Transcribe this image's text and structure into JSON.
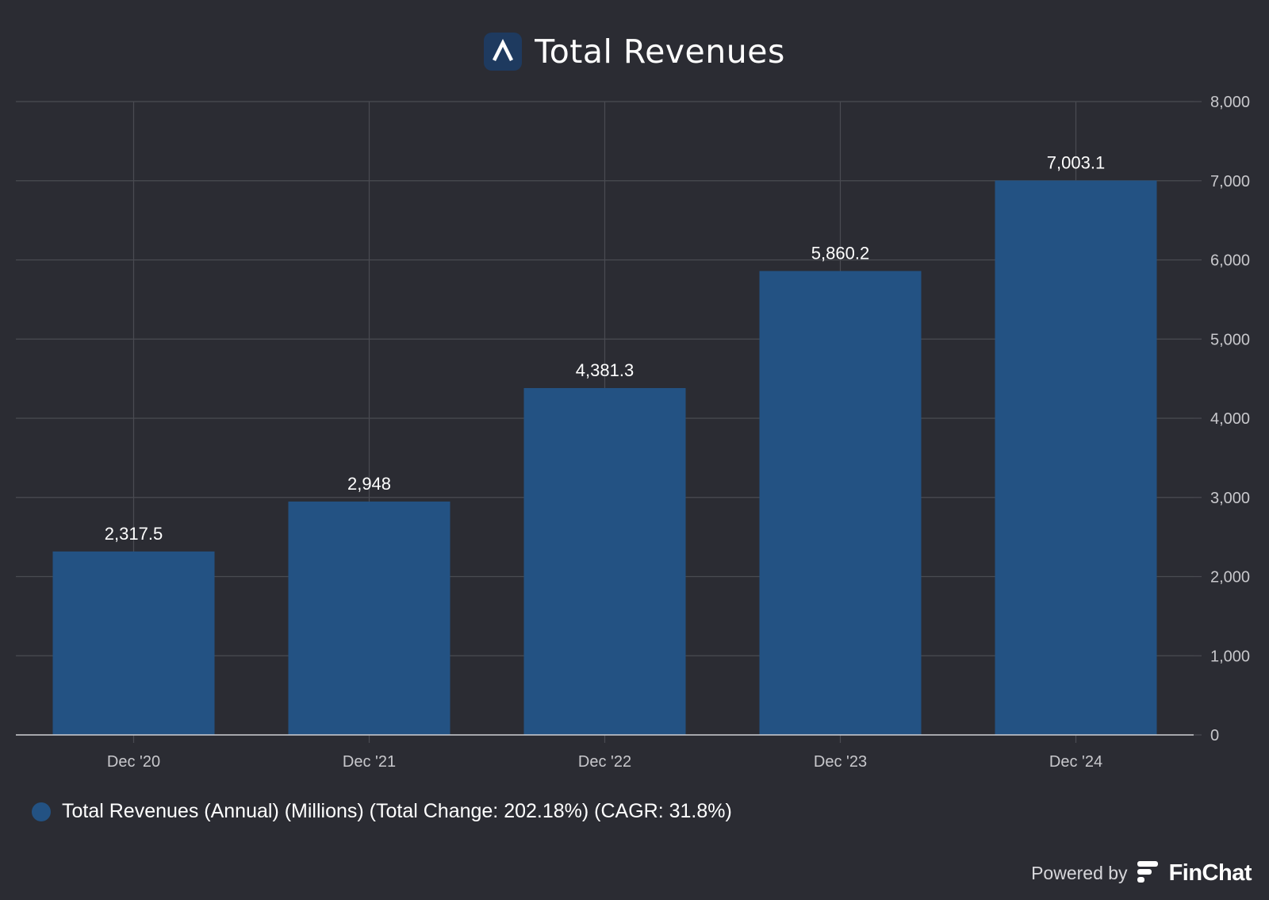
{
  "header": {
    "title": "Total Revenues",
    "logo_icon": "letter-a-logo-icon"
  },
  "chart_data": {
    "type": "bar",
    "title": "Total Revenues",
    "categories": [
      "Dec '20",
      "Dec '21",
      "Dec '22",
      "Dec '23",
      "Dec '24"
    ],
    "series": [
      {
        "name": "Total Revenues (Annual) (Millions) (Total Change: 202.18%) (CAGR: 31.8%)",
        "values": [
          2317.5,
          2948,
          4381.3,
          5860.2,
          7003.1
        ],
        "labels": [
          "2,317.5",
          "2,948",
          "4,381.3",
          "5,860.2",
          "7,003.1"
        ],
        "color": "#235283"
      }
    ],
    "ylim": [
      0,
      8000
    ],
    "yticks": [
      0,
      1000,
      2000,
      3000,
      4000,
      5000,
      6000,
      7000,
      8000
    ],
    "ytick_labels": [
      "0",
      "1,000",
      "2,000",
      "3,000",
      "4,000",
      "5,000",
      "6,000",
      "7,000",
      "8,000"
    ],
    "y_axis_side": "right",
    "grid": true,
    "legend_position": "bottom-left"
  },
  "legend": {
    "label": "Total Revenues (Annual) (Millions) (Total Change: 202.18%) (CAGR: 31.8%)"
  },
  "footer": {
    "powered_by": "Powered by",
    "brand": "FinChat",
    "brand_icon": "finchat-logo-icon"
  },
  "colors": {
    "background": "#2b2c33",
    "bar": "#235283",
    "grid": "#4a4b52",
    "text": "#ffffff",
    "axis_text": "#c8c8cc"
  }
}
